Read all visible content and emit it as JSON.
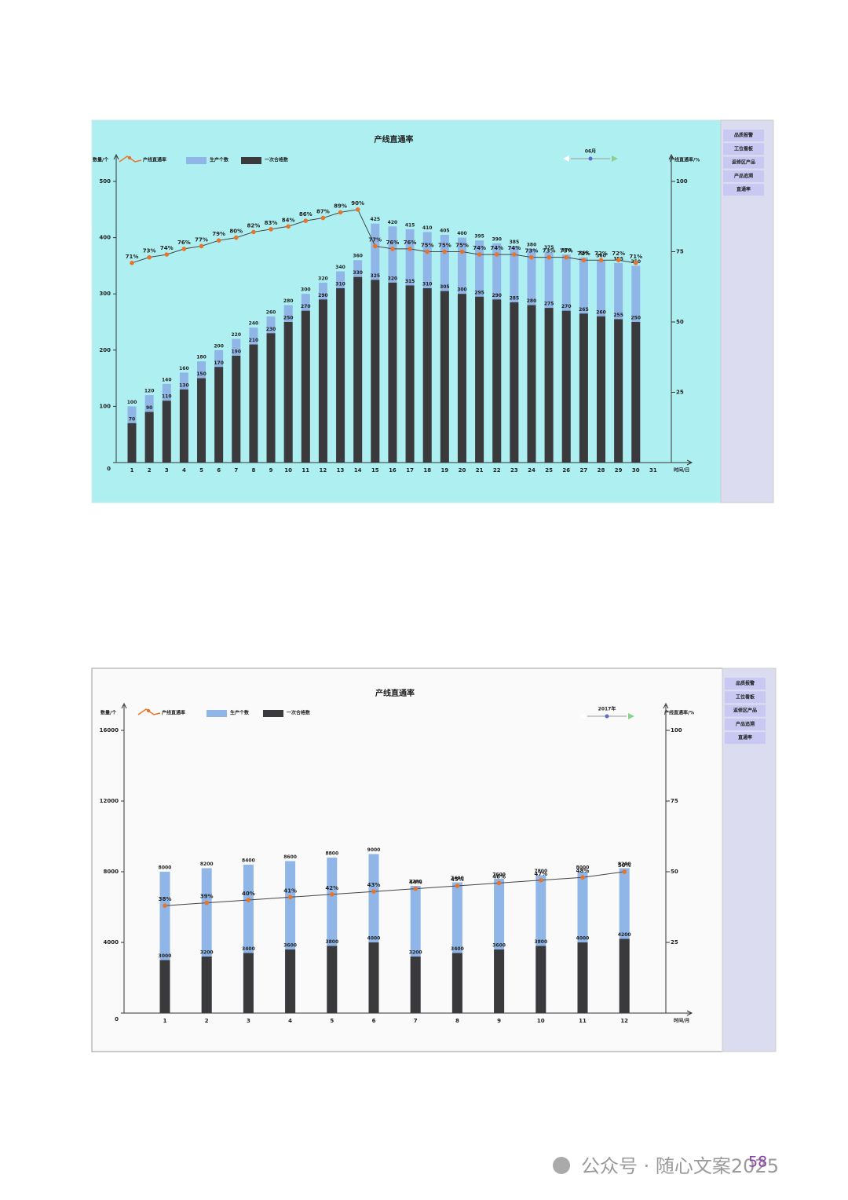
{
  "chart_data": [
    {
      "type": "bar",
      "title": "产线直通率",
      "y_label": "数量/个",
      "y2_label": "产线直通率/%",
      "x_label": "时间/日",
      "selector": "06月",
      "menu": [
        "品质报警",
        "工位看板",
        "返修区产品",
        "产品追溯",
        "直通率"
      ],
      "categories": [
        "1",
        "2",
        "3",
        "4",
        "5",
        "6",
        "7",
        "8",
        "9",
        "10",
        "11",
        "12",
        "13",
        "14",
        "15",
        "16",
        "17",
        "18",
        "19",
        "20",
        "21",
        "22",
        "23",
        "24",
        "25",
        "26",
        "27",
        "28",
        "29",
        "30",
        "31"
      ],
      "series": [
        {
          "name": "产线直通率",
          "type": "line",
          "axis": "y2",
          "color": "#e8742a",
          "values": [
            71,
            73,
            74,
            76,
            77,
            79,
            80,
            82,
            83,
            84,
            86,
            87,
            89,
            90,
            77,
            76,
            76,
            75,
            75,
            75,
            74,
            74,
            74,
            73,
            73,
            73,
            72,
            72,
            72,
            71,
            null
          ],
          "value_labels": [
            "71%",
            "73%",
            "74%",
            "76%",
            "77%",
            "79%",
            "80%",
            "82%",
            "83%",
            "84%",
            "86%",
            "87%",
            "89%",
            "90%",
            "77%",
            "76%",
            "76%",
            "75%",
            "75%",
            "75%",
            "74%",
            "74%",
            "74%",
            "73%",
            "73%",
            "73%",
            "72%",
            "72%",
            "72%",
            "71%",
            null
          ]
        },
        {
          "name": "生产个数",
          "color": "#8fb6e6",
          "values": [
            100,
            120,
            140,
            160,
            180,
            200,
            220,
            240,
            260,
            280,
            300,
            320,
            340,
            360,
            425,
            420,
            415,
            410,
            405,
            400,
            395,
            390,
            385,
            380,
            375,
            370,
            365,
            360,
            355,
            350,
            null
          ]
        },
        {
          "name": "一次合格数",
          "color": "#3a3a3c",
          "values": [
            70,
            90,
            110,
            130,
            150,
            170,
            190,
            210,
            230,
            250,
            270,
            290,
            310,
            330,
            325,
            320,
            315,
            310,
            305,
            300,
            295,
            290,
            285,
            280,
            275,
            270,
            265,
            260,
            255,
            250,
            null
          ]
        }
      ],
      "ylim": [
        0,
        500
      ],
      "yticks": [
        0,
        100,
        200,
        300,
        400,
        500
      ],
      "y2lim": [
        0,
        100
      ],
      "y2ticks": [
        25,
        50,
        75,
        100
      ],
      "background": "#aef0f2"
    },
    {
      "type": "bar",
      "title": "产线直通率",
      "y_label": "数量/个",
      "y2_label": "产线直通率/%",
      "x_label": "时间/月",
      "selector": "2017年",
      "menu": [
        "品质报警",
        "工位看板",
        "返修区产品",
        "产品追溯",
        "直通率"
      ],
      "categories": [
        "1",
        "2",
        "3",
        "4",
        "5",
        "6",
        "7",
        "8",
        "9",
        "10",
        "11",
        "12"
      ],
      "series": [
        {
          "name": "产线直通率",
          "type": "line",
          "axis": "y2",
          "color": "#e8742a",
          "values": [
            38,
            39,
            40,
            41,
            42,
            43,
            44,
            45,
            46,
            47,
            48,
            50
          ],
          "value_labels": [
            "38%",
            "39%",
            "40%",
            "41%",
            "42%",
            "43%",
            "44%",
            "45%",
            "46%",
            "47%",
            "48%",
            "50%"
          ]
        },
        {
          "name": "生产个数",
          "color": "#8fb6e6",
          "values": [
            8000,
            8200,
            8400,
            8600,
            8800,
            9000,
            7200,
            7400,
            7600,
            7800,
            8000,
            8200
          ]
        },
        {
          "name": "一次合格数",
          "color": "#3a3a3c",
          "values": [
            3000,
            3200,
            3400,
            3600,
            3800,
            4000,
            3200,
            3400,
            3600,
            3800,
            4000,
            4200
          ]
        }
      ],
      "ylim": [
        0,
        16000
      ],
      "yticks": [
        0,
        4000,
        8000,
        12000,
        16000
      ],
      "y2lim": [
        0,
        100
      ],
      "y2ticks": [
        25,
        50,
        75,
        100
      ],
      "background": "#fafafa"
    }
  ],
  "footer": {
    "watermark": "公众号 · 随心文案2025",
    "page": "58"
  }
}
